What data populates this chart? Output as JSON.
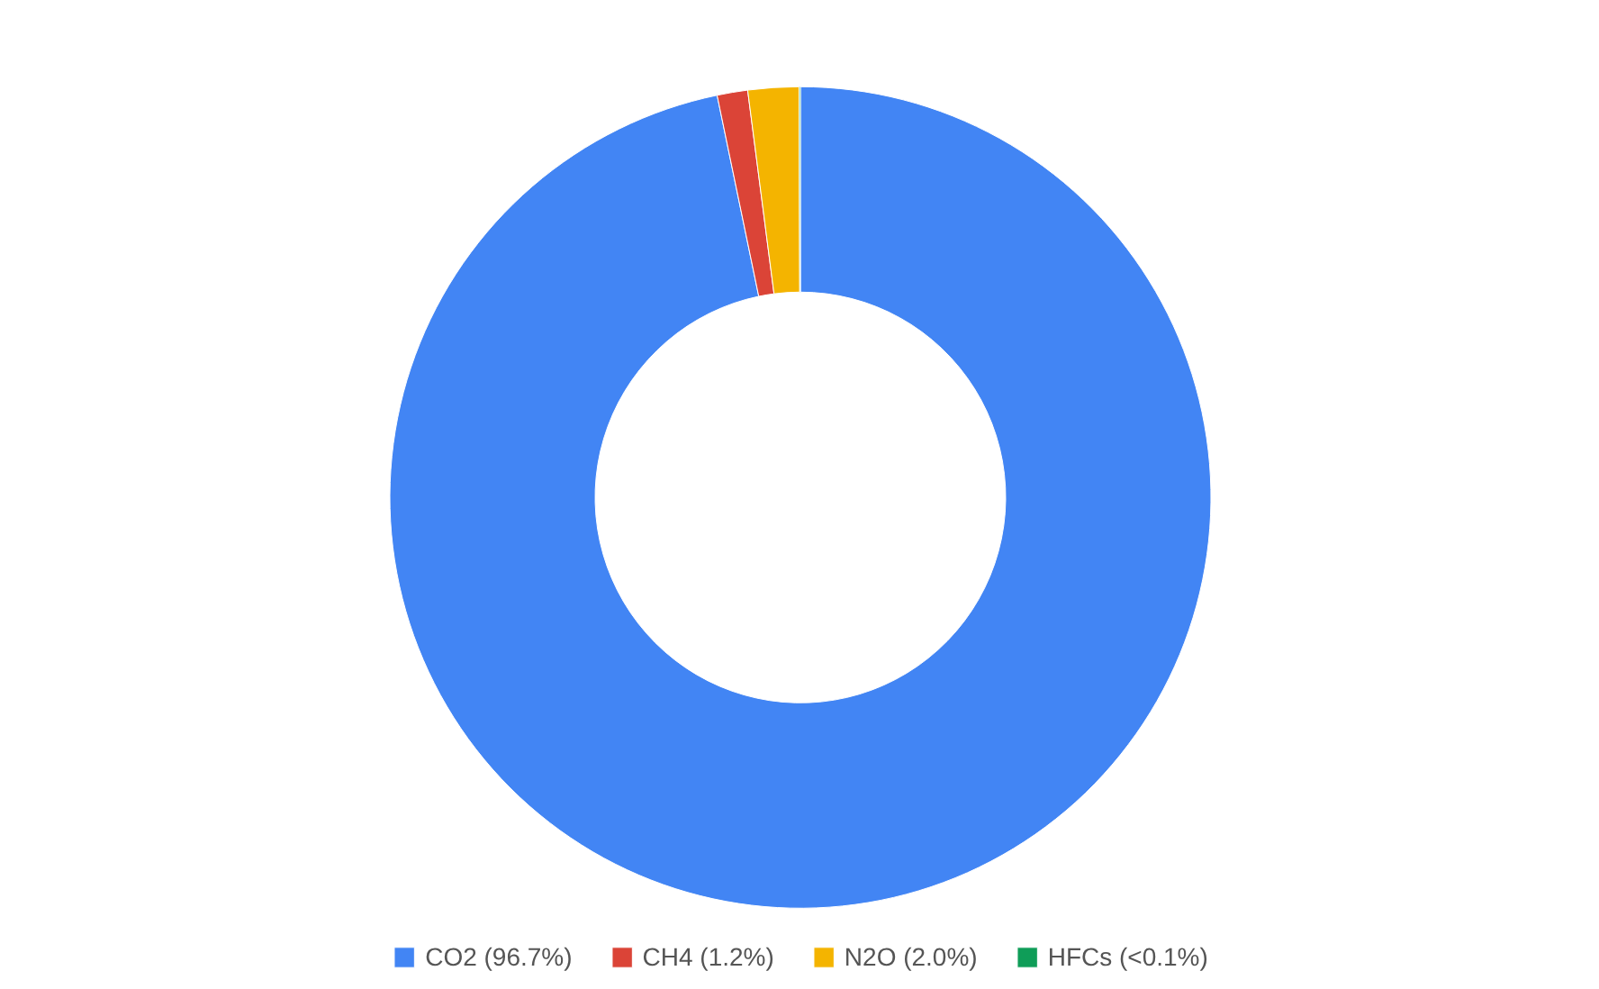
{
  "chart_data": {
    "type": "donut",
    "categories": [
      "CO2 (96.7%)",
      "CH4 (1.2%)",
      "N2O (2.0%)",
      "HFCs (<0.1%)"
    ],
    "values": [
      96.7,
      1.2,
      2.0,
      0.05
    ],
    "colors": [
      "#4285f4",
      "#db4437",
      "#f4b400",
      "#0f9d58"
    ],
    "legend": "bottom"
  }
}
